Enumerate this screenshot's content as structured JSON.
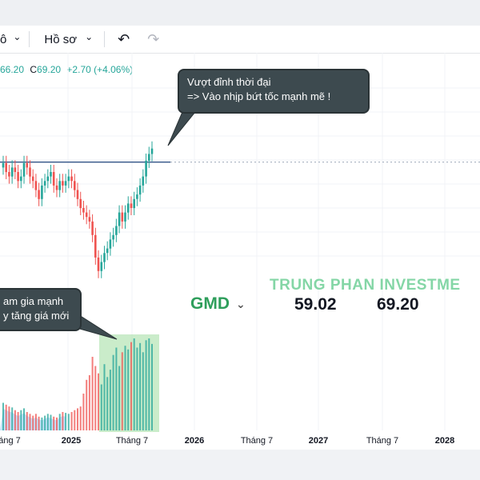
{
  "toolbar": {
    "left_fragment": "ô",
    "profile_label": "Hồ sơ",
    "profile_chevron": "⌄",
    "undo_icon": "↶",
    "redo_icon": "↷"
  },
  "ohlc": {
    "low_value": "66.20",
    "close_label": "C",
    "close_value": "69.20",
    "change": "+2.70 (+4.06%)"
  },
  "callout_top": {
    "line1": "Vượt đỉnh thời đại",
    "line2": "=> Vào nhịp bứt tốc mạnh mẽ !"
  },
  "callout_left": {
    "line1": "am gia mạnh",
    "line2": "y tăng giá mới"
  },
  "watermark": "TRUNG PHAN INVESTME",
  "ticker": {
    "symbol": "GMD",
    "chevron": "⌄",
    "price_1": "59.02",
    "price_2": "69.20"
  },
  "xaxis": {
    "labels": [
      "áng 7",
      "2025",
      "Tháng 7",
      "2026",
      "Tháng 7",
      "2027",
      "Tháng 7",
      "2028"
    ]
  },
  "colors": {
    "up": "#26a69a",
    "down": "#ef5350",
    "resistance_line": "#3a5a8c",
    "callout_bg": "#3d4a4f",
    "highlight": "#9fdc9f",
    "watermark": "#6fcf97"
  },
  "chart_data": {
    "type": "candlestick",
    "series_description": "GMD price candles with horizontal all-time-high resistance level",
    "resistance_level": 66.2,
    "last_close": 69.2,
    "prices": [
      66,
      64,
      63,
      65,
      64,
      62,
      63,
      66,
      65,
      63,
      62,
      60,
      58,
      61,
      62,
      63,
      64,
      61,
      60,
      62,
      61,
      62,
      63,
      62,
      60,
      58,
      56,
      55,
      54,
      53,
      50,
      45,
      42,
      44,
      46,
      47,
      49,
      50,
      52,
      55,
      53,
      55,
      57,
      56,
      58,
      59,
      61,
      63,
      66.5,
      68,
      69.2
    ],
    "volume": [
      30,
      28,
      26,
      25,
      22,
      20,
      22,
      24,
      20,
      18,
      16,
      18,
      15,
      14,
      16,
      18,
      17,
      15,
      14,
      18,
      20,
      19,
      18,
      20,
      22,
      24,
      26,
      40,
      55,
      60,
      80,
      70,
      62,
      50,
      72,
      58,
      66,
      82,
      90,
      70,
      85,
      92,
      88,
      96,
      100,
      90,
      95,
      85,
      98,
      100,
      94
    ]
  }
}
